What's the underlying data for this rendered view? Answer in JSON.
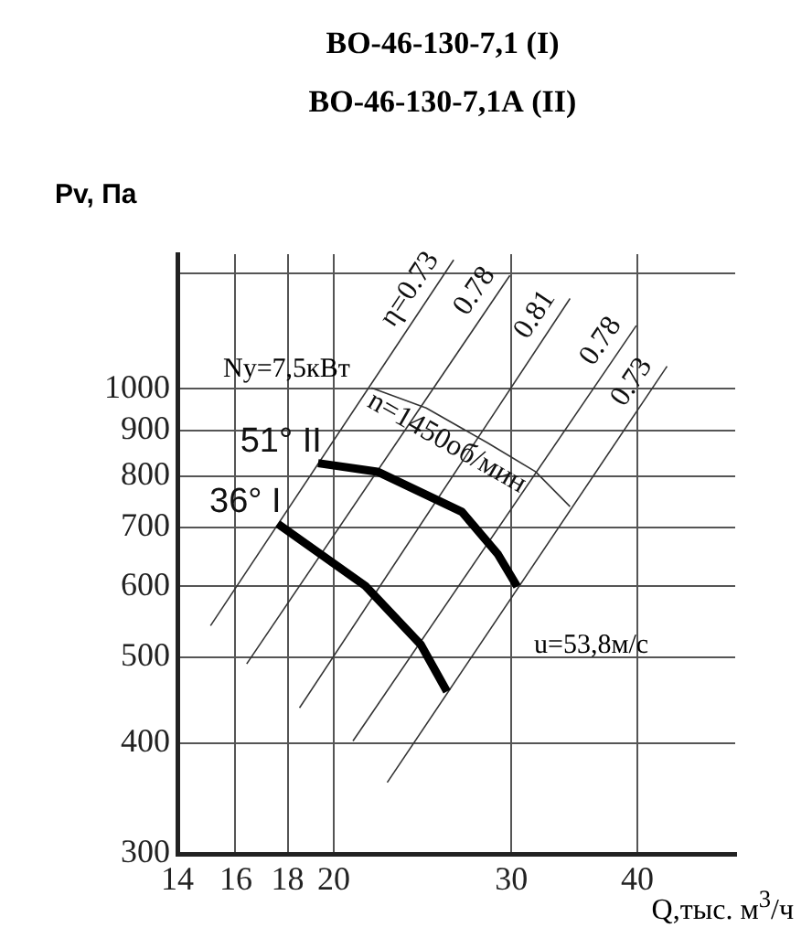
{
  "chart_data": {
    "type": "line",
    "title": "ВО-46-130-7,1 (I)",
    "subtitle": "ВО-46-130-7,1А  (II)",
    "xlabel": "Q,тыс. м$^{3}$/ч",
    "ylabel": "Pv, Па",
    "log": "xy",
    "grid": true,
    "legend": false,
    "marker": "none",
    "xlim": [
      14,
      50
    ],
    "xticks": [
      14,
      16,
      18,
      20,
      30,
      40
    ],
    "ylim": [
      300,
      1420
    ],
    "yticks": [
      300,
      400,
      500,
      600,
      700,
      800,
      900,
      1000,
      {
        "value": 1350,
        "label": null
      }
    ],
    "annotations": [
      "Ny=7,5кВт",
      "u=53,8м/с"
    ],
    "series": [
      {
        "name": "51° II",
        "color": "#000000",
        "x": [
          19.3,
          22.1,
          26.8,
          29.1,
          30.4
        ],
        "values": [
          826,
          808,
          728,
          652,
          600
        ]
      },
      {
        "name": "36° I",
        "color": "#000000",
        "x": [
          17.6,
          21.5,
          24.4,
          25.9
        ],
        "values": [
          706,
          601,
          516,
          457
        ]
      },
      {
        "name": "η=0.73",
        "color": "#333333",
        "x": [
          15.1,
          26.3
        ],
        "values": [
          542,
          1399
        ]
      },
      {
        "name": "0.78",
        "color": "#333333",
        "x": [
          16.4,
          29.9
        ],
        "values": [
          491,
          1344
        ]
      },
      {
        "name": "0.81",
        "color": "#333333",
        "x": [
          18.5,
          34.3
        ],
        "values": [
          438,
          1266
        ]
      },
      {
        "name": "0.78",
        "color": "#333333",
        "x": [
          20.9,
          39.9
        ],
        "values": [
          402,
          1180
        ]
      },
      {
        "name": "0.73",
        "color": "#333333",
        "x": [
          22.6,
          42.8
        ],
        "values": [
          361,
          1062
        ]
      },
      {
        "name": "n=1450об/мин",
        "color": "#333333",
        "x": [
          21.8,
          24.7,
          28.4,
          31.7,
          34.3
        ],
        "values": [
          1004,
          953,
          871,
          808,
          738
        ]
      }
    ]
  }
}
